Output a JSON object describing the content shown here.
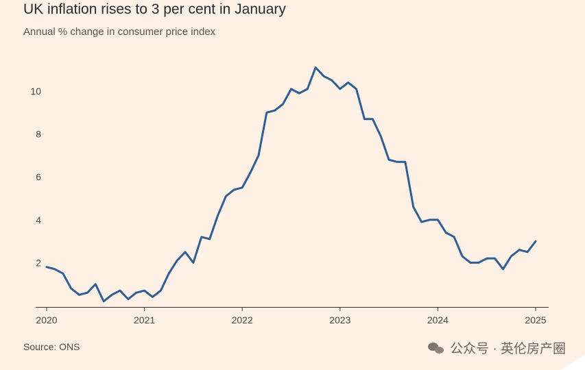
{
  "title": "UK inflation rises to 3 per cent in January",
  "subtitle": "Annual % change in consumer price index",
  "source": "Source: ONS",
  "watermark": {
    "text": "公众号 · 英伦房产圈",
    "icon": "wechat-icon"
  },
  "colors": {
    "background": "#fdf1e5",
    "line": "#2f5d94",
    "axis": "#333333",
    "grid": "#e9dccf"
  },
  "chart_data": {
    "type": "line",
    "title": "UK inflation rises to 3 per cent in January",
    "ylabel": "",
    "xlabel": "",
    "ylim": [
      0,
      11.5
    ],
    "yticks": [
      2,
      4,
      6,
      8,
      10
    ],
    "xticks": [
      "2020",
      "2021",
      "2022",
      "2023",
      "2024",
      "2025"
    ],
    "x_start": "2020-01",
    "grid": false,
    "series": [
      {
        "values": [
          1.8,
          1.7,
          1.5,
          0.8,
          0.5,
          0.6,
          1.0,
          0.2,
          0.5,
          0.7,
          0.3,
          0.6,
          0.7,
          0.4,
          0.7,
          1.5,
          2.1,
          2.5,
          2.0,
          3.2,
          3.1,
          4.2,
          5.1,
          5.4,
          5.5,
          6.2,
          7.0,
          9.0,
          9.1,
          9.4,
          10.1,
          9.9,
          10.1,
          11.1,
          10.7,
          10.5,
          10.1,
          10.4,
          10.1,
          8.7,
          8.7,
          7.9,
          6.8,
          6.7,
          6.7,
          4.6,
          3.9,
          4.0,
          4.0,
          3.4,
          3.2,
          2.3,
          2.0,
          2.0,
          2.2,
          2.2,
          1.7,
          2.3,
          2.6,
          2.5,
          3.0
        ]
      }
    ]
  }
}
